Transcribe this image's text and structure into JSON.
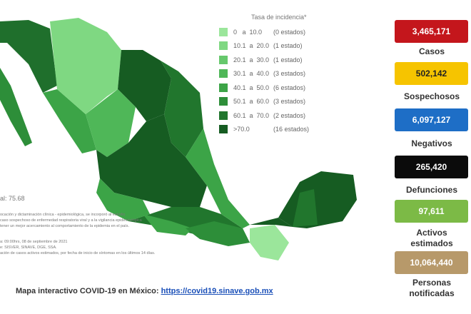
{
  "legend": {
    "title": "Tasa de incidencia*",
    "items": [
      {
        "range": "0   a  10.0",
        "count": "(0 estados)",
        "color": "#9be69b"
      },
      {
        "range": "10.1  a  20.0",
        "count": "(1 estado)",
        "color": "#7fd882"
      },
      {
        "range": "20.1  a  30.0",
        "count": "(1 estado)",
        "color": "#66c86c"
      },
      {
        "range": "30.1  a  40.0",
        "count": "(3 estados)",
        "color": "#4fb758"
      },
      {
        "range": "40.1  a  50.0",
        "count": "(6 estados)",
        "color": "#3ca447"
      },
      {
        "range": "50.1  a  60.0",
        "count": "(3 estados)",
        "color": "#2d8e39"
      },
      {
        "range": "60.1  a  70.0",
        "count": "(2 estados)",
        "color": "#21762d"
      },
      {
        "range": ">70.0",
        "count": "(16 estados)",
        "color": "#165c22"
      }
    ]
  },
  "average": "al: 75.68",
  "notes": [
    "ocación y dictaminación clínica - epidemiológica, se incorporó al estudio",
    "caso sospechoso de enfermedad respiratoria viral y a la vigilancia epidemiológica",
    "tener un mejor acercamiento al comportamiento de la epidemia en el país.",
    "a: 09:00hrs, 08 de septiembre de 2021",
    "e: SISVER, SINAVE, DGE, SSA.",
    "ación de casos activos estimados, por fecha de inicio de síntomas en los últimos 14 días."
  ],
  "stats": [
    {
      "value": "3,465,171",
      "label": "Casos",
      "color": "#c4161c"
    },
    {
      "value": "502,142",
      "label": "Sospechosos",
      "color": "#f6c400"
    },
    {
      "value": "6,097,127",
      "label": "Negativos",
      "color": "#1e6ec6"
    },
    {
      "value": "265,420",
      "label": "Defunciones",
      "color": "#0b0b0b"
    },
    {
      "value": "97,611",
      "label": "Activos estimados",
      "color": "#7cba46"
    },
    {
      "value": "10,064,440",
      "label": "Personas notificadas",
      "color": "#b7996a"
    }
  ],
  "footer": {
    "text": "Mapa interactivo COVID-19 en México: ",
    "link": "https://covid19.sinave.gob.mx"
  }
}
